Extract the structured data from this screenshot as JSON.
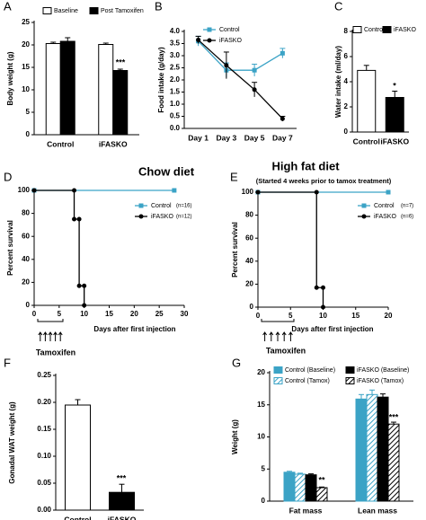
{
  "chart_data": [
    {
      "type": "bar",
      "panel": "A",
      "ylabel": "Body weight (g)",
      "categories": [
        "Control",
        "iFASKO"
      ],
      "series": [
        {
          "name": "Baseline",
          "color": "#ffffff",
          "values": [
            20.3,
            20.1
          ],
          "errors": [
            0.3,
            0.3
          ]
        },
        {
          "name": "Post Tamoxifen",
          "color": "#000000",
          "values": [
            20.8,
            14.3
          ],
          "errors": [
            0.8,
            0.3
          ]
        }
      ],
      "ylim": [
        0,
        25
      ],
      "yticks": [
        0,
        5,
        10,
        15,
        20,
        25
      ],
      "annotations": [
        "***"
      ]
    },
    {
      "type": "line",
      "panel": "B",
      "ylabel": "Food intake (g/day)",
      "categories": [
        "Day 1",
        "Day 3",
        "Day 5",
        "Day 7"
      ],
      "series": [
        {
          "name": "Control",
          "color": "#3ba3c6",
          "marker": "square",
          "values": [
            3.6,
            2.4,
            2.4,
            3.1
          ],
          "errors": [
            0.2,
            0.3,
            0.25,
            0.2
          ]
        },
        {
          "name": "iFASKO",
          "color": "#000000",
          "marker": "circle",
          "values": [
            3.65,
            2.6,
            1.6,
            0.4
          ],
          "errors": [
            0.15,
            0.55,
            0.3,
            0.1
          ]
        }
      ],
      "ylim": [
        0,
        4
      ],
      "yticks": [
        {
          "value": 0,
          "label": "0.0"
        },
        0.5,
        {
          "value": 1,
          "label": "1.0"
        },
        1.5,
        {
          "value": 2,
          "label": "2.0"
        },
        2.5,
        {
          "value": 3,
          "label": "3.0"
        },
        3.5,
        {
          "value": 4,
          "label": "4.0"
        }
      ]
    },
    {
      "type": "bar",
      "panel": "C",
      "ylabel": "Water intake (ml/day)",
      "categories": [
        "Control",
        "iFASKO"
      ],
      "values": [
        4.9,
        2.75
      ],
      "errors": [
        0.4,
        0.5
      ],
      "colors": [
        "#ffffff",
        "#000000"
      ],
      "legend": true,
      "ylim": [
        0,
        8
      ],
      "yticks": [
        0,
        2,
        4,
        6,
        8
      ],
      "annotations": [
        "*"
      ]
    },
    {
      "type": "line",
      "panel": "D",
      "title": "Chow diet",
      "xlabel": "Days after first injection",
      "ylabel": "Percent survival",
      "series": [
        {
          "name": "Control",
          "note": "(n=16)",
          "color": "#3ba3c6",
          "marker": "square",
          "x": [
            0,
            28
          ],
          "values": [
            100,
            100
          ]
        },
        {
          "name": "iFASKO",
          "note": "(n=12)",
          "color": "#000000",
          "marker": "circle",
          "x": [
            0,
            8,
            8,
            9,
            9,
            10,
            10
          ],
          "values": [
            100,
            100,
            75,
            75,
            17,
            17,
            0
          ]
        }
      ],
      "xlim": [
        0,
        30
      ],
      "xticks": [
        0,
        5,
        10,
        15,
        20,
        25,
        30
      ],
      "ylim": [
        0,
        100
      ],
      "yticks": [
        0,
        20,
        40,
        60,
        80,
        100
      ],
      "annotations": [
        "Tamoxifen"
      ]
    },
    {
      "type": "line",
      "panel": "E",
      "title": "High fat diet",
      "subtitle": "(Started 4 weeks prior to tamox treatment)",
      "xlabel": "Days after first injection",
      "ylabel": "Percent survival",
      "series": [
        {
          "name": "Control",
          "note": "(n=7)",
          "color": "#3ba3c6",
          "marker": "square",
          "x": [
            0,
            20
          ],
          "values": [
            100,
            100
          ]
        },
        {
          "name": "iFASKO",
          "note": "(n=6)",
          "color": "#000000",
          "marker": "circle",
          "x": [
            0,
            9,
            9,
            10,
            10
          ],
          "values": [
            100,
            100,
            17,
            17,
            0
          ]
        }
      ],
      "xlim": [
        0,
        20
      ],
      "xticks": [
        0,
        5,
        10,
        15,
        20
      ],
      "ylim": [
        0,
        100
      ],
      "yticks": [
        0,
        20,
        40,
        60,
        80,
        100
      ],
      "annotations": [
        "Tamoxifen"
      ]
    },
    {
      "type": "bar",
      "panel": "F",
      "ylabel": "Gonadal WAT weight (g)",
      "categories": [
        "Control",
        "iFASKO"
      ],
      "values": [
        0.195,
        0.033
      ],
      "errors": [
        0.01,
        0.015
      ],
      "colors": [
        "#ffffff",
        "#000000"
      ],
      "ylim": [
        0,
        0.25
      ],
      "yticks": [
        {
          "value": 0,
          "label": "0.00"
        },
        0.05,
        {
          "value": 0.1,
          "label": "0.10"
        },
        0.15,
        {
          "value": 0.2,
          "label": "0.20"
        },
        0.25
      ],
      "annotations": [
        "***"
      ]
    },
    {
      "type": "bar",
      "panel": "G",
      "ylabel": "Weight (g)",
      "categories": [
        "Fat mass",
        "Lean mass"
      ],
      "series": [
        {
          "name": "Control (Baseline)",
          "color": "#3ba3c6",
          "hatch": false,
          "values": [
            4.5,
            15.9
          ],
          "errors": [
            0.15,
            0.7
          ]
        },
        {
          "name": "Control (Tamox)",
          "color": "#3ba3c6",
          "hatch": true,
          "values": [
            4.2,
            16.6
          ],
          "errors": [
            0.15,
            0.7
          ]
        },
        {
          "name": "iFASKO (Baseline)",
          "color": "#000000",
          "hatch": false,
          "values": [
            4.1,
            16.2
          ],
          "errors": [
            0.15,
            0.5
          ]
        },
        {
          "name": "iFASKO (Tamox)",
          "color": "#000000",
          "hatch": true,
          "values": [
            2.1,
            12.0
          ],
          "errors": [
            0.1,
            0.3
          ]
        }
      ],
      "ylim": [
        0,
        20
      ],
      "yticks": [
        0,
        5,
        10,
        15,
        20
      ],
      "annotations": [
        "**",
        "***"
      ]
    }
  ]
}
